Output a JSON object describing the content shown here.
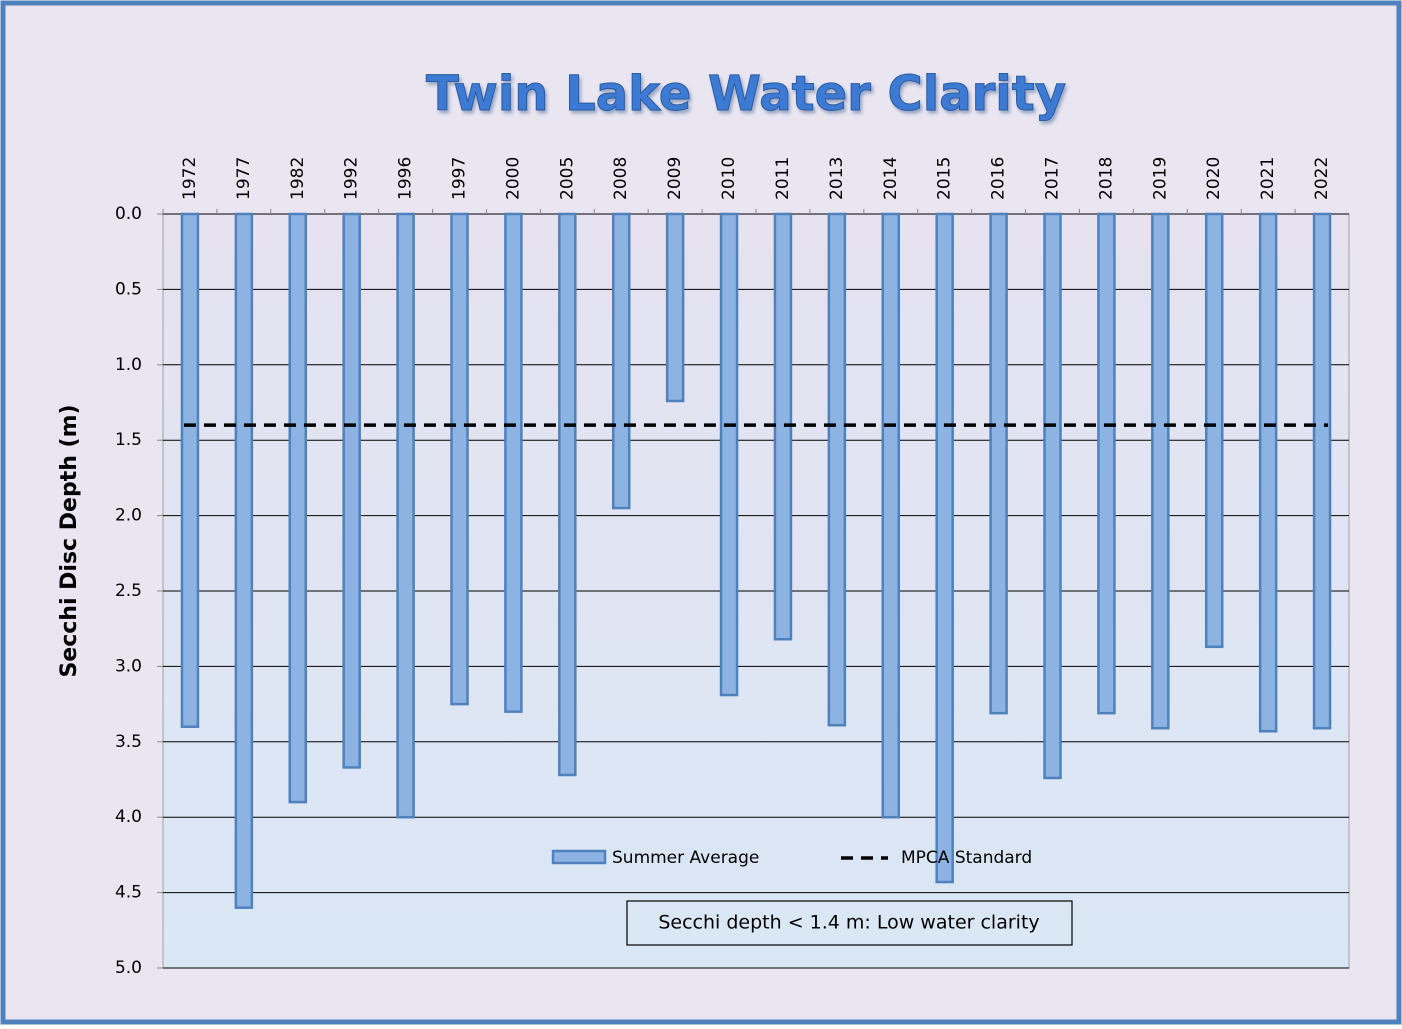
{
  "chart_data": {
    "type": "bar",
    "title": "Twin Lake Water Clarity",
    "y_label": "Secchi Disc Depth (m)",
    "annotation": "Secchi depth  < 1.4 m: Low water clarity",
    "categories": [
      "1972",
      "1977",
      "1982",
      "1992",
      "1996",
      "1997",
      "2000",
      "2005",
      "2008",
      "2009",
      "2010",
      "2011",
      "2013",
      "2014",
      "2015",
      "2016",
      "2017",
      "2018",
      "2019",
      "2020",
      "2021",
      "2022"
    ],
    "series": [
      {
        "name": "Summer Average",
        "color": "#8db3e2",
        "values": [
          3.4,
          4.6,
          3.9,
          3.67,
          4.0,
          3.25,
          3.3,
          3.72,
          1.95,
          1.24,
          3.19,
          2.82,
          3.39,
          4.0,
          4.43,
          3.31,
          3.74,
          3.31,
          3.41,
          2.87,
          3.43,
          3.41
        ]
      }
    ],
    "reference_line": {
      "name": "MPCA Standard",
      "value": 1.4,
      "color": "#000000"
    },
    "ylim": [
      0,
      5
    ],
    "y_inverted": true,
    "yticks": [
      {
        "value": 0,
        "label": "0.0"
      },
      0.5,
      {
        "value": 1,
        "label": "1.0"
      },
      1.5,
      {
        "value": 2,
        "label": "2.0"
      },
      2.5,
      {
        "value": 3,
        "label": "3.0"
      },
      3.5,
      {
        "value": 4,
        "label": "4.0"
      },
      4.5,
      {
        "value": 5,
        "label": "5.0"
      }
    ],
    "grid": true
  }
}
